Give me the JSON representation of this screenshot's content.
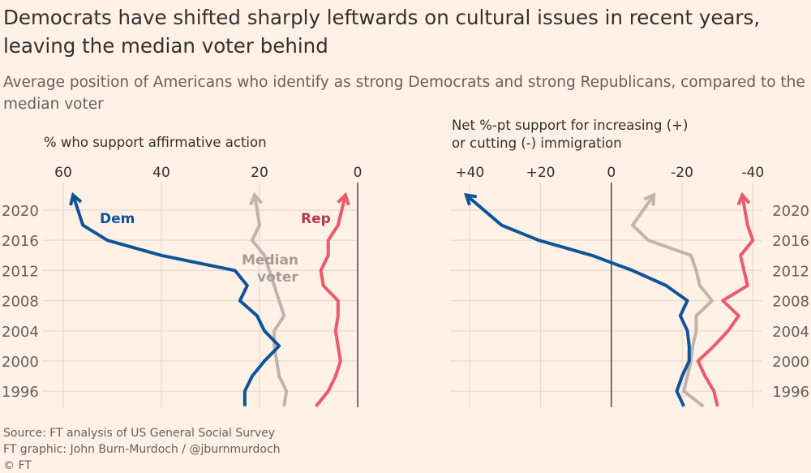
{
  "title": "Democrats have shifted sharply leftwards on cultural issues in recent years, leaving the median voter behind",
  "subtitle": "Average position of Americans who identify as strong Democrats and strong Republicans, compared to the median voter",
  "footer": {
    "source": "Source: FT analysis of US General Social Survey",
    "credit": "FT graphic: John Burn-Murdoch / @jburnmurdoch",
    "copyright": "© FT"
  },
  "colors": {
    "Dem": "#0f5499",
    "Rep": "#ec5a6b",
    "Median voter": "#bdb5ad",
    "background": "#fff1e5"
  },
  "chart_data": [
    {
      "type": "line",
      "xlabel": "% who support affirmative action",
      "xlim": [
        60,
        0
      ],
      "xticks": [
        "60",
        "40",
        "20",
        "0"
      ],
      "xtick_values": [
        60,
        40,
        20,
        0
      ],
      "yticks": [
        "2020",
        "2016",
        "2012",
        "2008",
        "2004",
        "2000",
        "1996"
      ],
      "ytick_values": [
        2020,
        2016,
        2012,
        2008,
        2004,
        2000,
        1996
      ],
      "grid": true,
      "years": [
        1994,
        1996,
        1998,
        2000,
        2002,
        2004,
        2006,
        2008,
        2010,
        2012,
        2014,
        2016,
        2018,
        2022
      ],
      "series": [
        {
          "name": "Dem",
          "values": [
            23,
            23,
            21.5,
            19,
            16,
            19,
            20.5,
            24,
            22.5,
            25,
            40,
            51,
            56,
            58
          ]
        },
        {
          "name": "Median voter",
          "values": [
            15,
            14.5,
            16,
            16.5,
            17,
            17,
            15,
            16,
            17,
            18,
            19,
            21.5,
            20,
            21
          ]
        },
        {
          "name": "Rep",
          "values": [
            8.5,
            6,
            4.5,
            3.5,
            4,
            4.5,
            4,
            4,
            7,
            7.5,
            6,
            6,
            4,
            2.5
          ]
        }
      ]
    },
    {
      "type": "line",
      "xlabel": "Net %-pt support for increasing (+) or cutting (-) immigration",
      "xlim": [
        40,
        -40
      ],
      "xticks": [
        "+40",
        "+20",
        "0",
        "-20",
        "-40"
      ],
      "xtick_values": [
        40,
        20,
        0,
        -20,
        -40
      ],
      "yticks": [
        "2020",
        "2016",
        "2012",
        "2008",
        "2004",
        "2000",
        "1996"
      ],
      "ytick_values": [
        2020,
        2016,
        2012,
        2008,
        2004,
        2000,
        1996
      ],
      "grid": true,
      "years": [
        1994,
        1996,
        1998,
        2000,
        2002,
        2004,
        2006,
        2008,
        2010,
        2012,
        2014,
        2016,
        2018,
        2022
      ],
      "series": [
        {
          "name": "Dem",
          "values": [
            -20.5,
            -18.5,
            -20,
            -22,
            -22,
            -21.5,
            -19.5,
            -21.5,
            -15.5,
            -6,
            5.5,
            20.5,
            31,
            41
          ]
        },
        {
          "name": "Median voter",
          "values": [
            -26,
            -20.5,
            -21.5,
            -22.5,
            -23,
            -24,
            -24,
            -28.5,
            -25,
            -24,
            -22.5,
            -10.5,
            -6,
            -12
          ]
        },
        {
          "name": "Rep",
          "values": [
            -30,
            -29,
            -26.5,
            -24.5,
            -29,
            -33,
            -36,
            -31.5,
            -38.5,
            -37.5,
            -36.5,
            -40,
            -38.5,
            -37
          ]
        }
      ]
    }
  ],
  "labels": {
    "dem": "Dem",
    "rep": "Rep",
    "median_1": "Median",
    "median_2": "voter",
    "left_xlabel": "% who support affirmative action",
    "right_xlabel_1": "Net %-pt support for increasing (+)",
    "right_xlabel_2": "or cutting (-) immigration"
  }
}
